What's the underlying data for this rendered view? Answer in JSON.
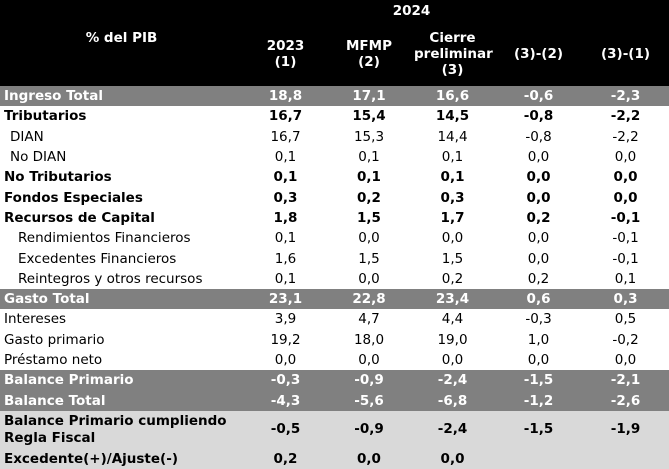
{
  "header": {
    "group_label": "2024",
    "row_label": "% del PIB",
    "columns": [
      "2023\n(1)",
      "MFMP\n(2)",
      "Cierre\npreliminar\n(3)",
      "(3)-(2)",
      "(3)-(1)"
    ]
  },
  "rows": [
    {
      "label": "Ingreso Total",
      "style": "gray",
      "indent": 0,
      "values": [
        "18,8",
        "17,1",
        "16,6",
        "-0,6",
        "-2,3"
      ]
    },
    {
      "label": "Tributarios",
      "style": "bold",
      "indent": 0,
      "values": [
        "16,7",
        "15,4",
        "14,5",
        "-0,8",
        "-2,2"
      ]
    },
    {
      "label": "DIAN",
      "style": "normal",
      "indent": 1,
      "values": [
        "16,7",
        "15,3",
        "14,4",
        "-0,8",
        "-2,2"
      ]
    },
    {
      "label": "No DIAN",
      "style": "normal",
      "indent": 1,
      "values": [
        "0,1",
        "0,1",
        "0,1",
        "0,0",
        "0,0"
      ]
    },
    {
      "label": "No Tributarios",
      "style": "bold",
      "indent": 0,
      "values": [
        "0,1",
        "0,1",
        "0,1",
        "0,0",
        "0,0"
      ]
    },
    {
      "label": "Fondos Especiales",
      "style": "bold",
      "indent": 0,
      "values": [
        "0,3",
        "0,2",
        "0,3",
        "0,0",
        "0,0"
      ]
    },
    {
      "label": "Recursos de Capital",
      "style": "bold",
      "indent": 0,
      "values": [
        "1,8",
        "1,5",
        "1,7",
        "0,2",
        "-0,1"
      ]
    },
    {
      "label": "Rendimientos Financieros",
      "style": "normal",
      "indent": 2,
      "values": [
        "0,1",
        "0,0",
        "0,0",
        "0,0",
        "-0,1"
      ]
    },
    {
      "label": "Excedentes Financieros",
      "style": "normal",
      "indent": 2,
      "values": [
        "1,6",
        "1,5",
        "1,5",
        "0,0",
        "-0,1"
      ]
    },
    {
      "label": "Reintegros y otros recursos",
      "style": "normal",
      "indent": 2,
      "values": [
        "0,1",
        "0,0",
        "0,2",
        "0,2",
        "0,1"
      ]
    },
    {
      "label": "Gasto Total",
      "style": "gray",
      "indent": 0,
      "values": [
        "23,1",
        "22,8",
        "23,4",
        "0,6",
        "0,3"
      ]
    },
    {
      "label": "Intereses",
      "style": "normal",
      "indent": 0,
      "values": [
        "3,9",
        "4,7",
        "4,4",
        "-0,3",
        "0,5"
      ]
    },
    {
      "label": "Gasto primario",
      "style": "normal",
      "indent": 0,
      "values": [
        "19,2",
        "18,0",
        "19,0",
        "1,0",
        "-0,2"
      ]
    },
    {
      "label": "Préstamo neto",
      "style": "normal",
      "indent": 0,
      "values": [
        "0,0",
        "0,0",
        "0,0",
        "0,0",
        "0,0"
      ]
    },
    {
      "label": "Balance Primario",
      "style": "gray",
      "indent": 0,
      "values": [
        "-0,3",
        "-0,9",
        "-2,4",
        "-1,5",
        "-2,1"
      ]
    },
    {
      "label": "Balance Total",
      "style": "gray",
      "indent": 0,
      "values": [
        "-4,3",
        "-5,6",
        "-6,8",
        "-1,2",
        "-2,6"
      ]
    },
    {
      "label": "Balance Primario cumpliendo Regla Fiscal",
      "style": "lightgray",
      "indent": 0,
      "tall": true,
      "values": [
        "-0,5",
        "-0,9",
        "-2,4",
        "-1,5",
        "-1,9"
      ]
    },
    {
      "label": "Excedente(+)/Ajuste(-)",
      "style": "lightgray",
      "indent": 0,
      "values": [
        "0,2",
        "0,0",
        "0,0",
        "",
        ""
      ]
    }
  ]
}
